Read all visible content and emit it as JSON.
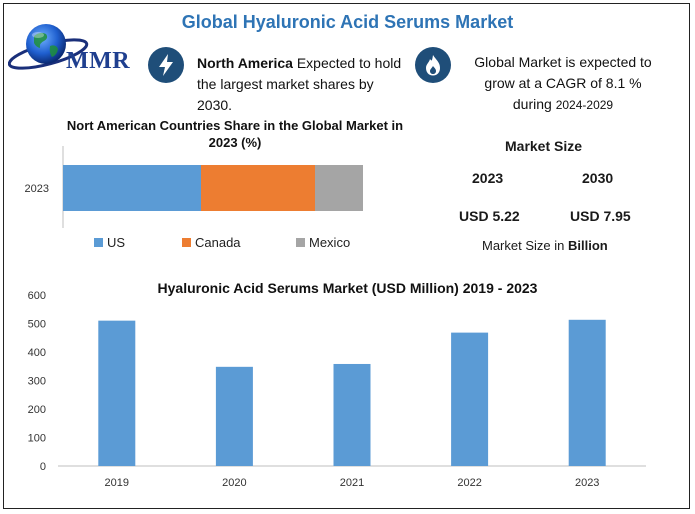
{
  "header": {
    "title": "Global Hyaluronic Acid Serums Market"
  },
  "logo": {
    "text": "MMR"
  },
  "highlights": {
    "north_america_bold": "North America",
    "north_america_rest": "Expected to hold the largest market shares by 2030.",
    "cagr_line": "Global Market is expected to grow at a CAGR of 8.1 %",
    "cagr_during": "during",
    "cagr_period": "2024-2029"
  },
  "market_size": {
    "title": "Market Size",
    "years": [
      "2023",
      "2030"
    ],
    "values": [
      "USD 5.22",
      "USD 7.95"
    ],
    "unit_prefix": "Market Size in",
    "unit_bold": "Billion"
  },
  "colors": {
    "accent": "#2e74b5",
    "us": "#5b9bd5",
    "canada": "#ed7d31",
    "mexico": "#a5a5a5",
    "badge": "#1f4e79"
  },
  "icons": {
    "na_badge": "lightning-icon",
    "cagr_badge": "flame-icon",
    "logo": "globe-icon"
  },
  "chart_data": [
    {
      "type": "bar",
      "orientation": "horizontal",
      "stacked": true,
      "title": "Nort American Countries Share in the Global Market in 2023 (%)",
      "categories": [
        "2023"
      ],
      "series": [
        {
          "name": "US",
          "values": [
            46
          ]
        },
        {
          "name": "Canada",
          "values": [
            38
          ]
        },
        {
          "name": "Mexico",
          "values": [
            16
          ]
        }
      ],
      "xlim": [
        0,
        100
      ],
      "legend": "bottom",
      "grid": false
    },
    {
      "type": "bar",
      "title": "Hyaluronic Acid Serums Market (USD Million) 2019 - 2023",
      "categories": [
        "2019",
        "2020",
        "2021",
        "2022",
        "2023"
      ],
      "values": [
        510,
        348,
        358,
        468,
        513
      ],
      "yticks": [
        "0",
        "100",
        "200",
        "300",
        "400",
        "500",
        "600"
      ],
      "ylim": [
        0,
        600
      ],
      "xlabel": "",
      "ylabel": "",
      "grid": false
    }
  ]
}
